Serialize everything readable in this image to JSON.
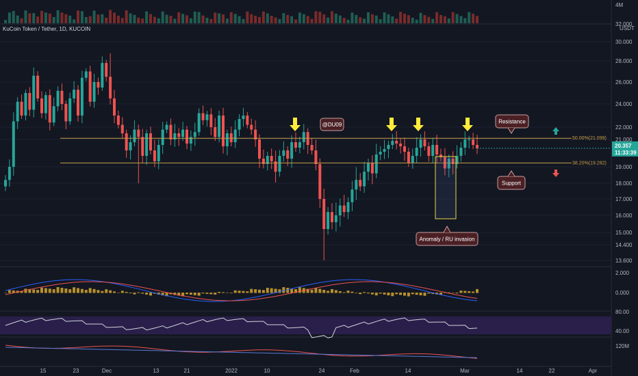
{
  "header": {
    "symbol": "KuCoin Token / Tether, 1D, KUCOIN"
  },
  "axis": {
    "currency": "USDT",
    "price_ticks": [
      "30.000",
      "28.000",
      "26.000",
      "24.000",
      "22.000",
      "21.000",
      "19.000",
      "18.000",
      "17.000",
      "16.000",
      "15.000",
      "14.400",
      "13.600"
    ],
    "x_ticks": [
      "15",
      "23",
      "Dec",
      "13",
      "21",
      "2022",
      "10",
      "24",
      "Feb",
      "14",
      "Mar",
      "14",
      "22",
      "Apr"
    ],
    "volume_ticks": [
      "4M",
      "32.000"
    ],
    "macd_ticks": [
      "2.000",
      "0.000"
    ],
    "rsi_ticks": [
      "80.00",
      "40.00"
    ],
    "obv_ticks": [
      "120M"
    ]
  },
  "last_price": {
    "value": "20.357",
    "countdown": "11:33:39"
  },
  "fib": {
    "upper": "50.00%(21.099)",
    "lower": "38.20%(19.282)"
  },
  "annotations": {
    "author": "@DU09",
    "resistance": "Resistance",
    "support": "Support",
    "anomaly": "Anomaly / RU invasion"
  },
  "colors": {
    "up": "#26a69a",
    "down": "#ef5350",
    "fib": "#c8a04a",
    "arrow": "#ffeb3b",
    "rsi_band": "#2a1f4a"
  },
  "chart_data": {
    "type": "candlestick",
    "title": "KuCoin Token / Tether, 1D, KUCOIN",
    "ylim": [
      13.6,
      30
    ],
    "fib_levels": [
      {
        "label": "50.00%",
        "value": 21.099
      },
      {
        "label": "38.20%",
        "value": 19.282
      }
    ],
    "closes": [
      18.2,
      19.0,
      22.5,
      24.2,
      23.0,
      25.0,
      23.5,
      26.6,
      24.5,
      23.2,
      24.8,
      22.4,
      23.8,
      25.2,
      24.0,
      22.5,
      24.5,
      25.3,
      23.0,
      26.4,
      27.0,
      24.2,
      26.0,
      25.5,
      27.8,
      26.5,
      24.5,
      23.0,
      22.2,
      21.5,
      20.2,
      20.8,
      21.8,
      21.2,
      19.8,
      21.5,
      20.2,
      19.4,
      20.6,
      21.8,
      22.2,
      21.0,
      21.5,
      21.2,
      21.8,
      20.7,
      21.2,
      21.6,
      23.2,
      22.6,
      23.1,
      22.0,
      21.2,
      23.0,
      20.5,
      21.5,
      20.8,
      21.8,
      22.7,
      23.0,
      22.2,
      21.8,
      21.0,
      19.6,
      19.2,
      19.8,
      19.4,
      18.7,
      19.8,
      20.2,
      19.6,
      20.8,
      20.4,
      20.8,
      21.6,
      20.6,
      20.2,
      19.2,
      17.0,
      15.2,
      16.2,
      15.6,
      16.0,
      16.6,
      16.2,
      16.8,
      17.6,
      18.2,
      17.8,
      18.7,
      19.3,
      18.6,
      19.9,
      20.1,
      20.3,
      20.6,
      20.9,
      20.7,
      20.5,
      20.1,
      19.3,
      19.8,
      20.4,
      21.0,
      20.5,
      19.8,
      20.6,
      19.9,
      19.7,
      18.9,
      19.6,
      19.2,
      19.8,
      20.4,
      21.0,
      21.0,
      20.6,
      20.357
    ],
    "last": 20.357
  }
}
